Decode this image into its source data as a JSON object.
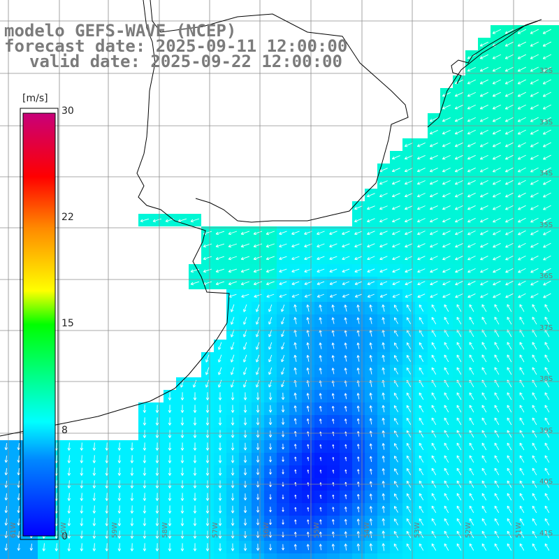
{
  "header": {
    "line1": "modelo GEFS-WAVE (NCEP)",
    "line2": "forecast date: 2025-09-11 12:00:00",
    "line3": "valid date: 2025-09-22 12:00:00"
  },
  "colorbar": {
    "unit": "[m/s]",
    "min": 0,
    "max": 30,
    "ticks": [
      "30",
      "22",
      "15",
      "8",
      "0"
    ],
    "tick_values": [
      30,
      22,
      15,
      8,
      0
    ],
    "colors": [
      "#0000ff",
      "#00aaff",
      "#00ffff",
      "#00ff00",
      "#ffff00",
      "#ff8800",
      "#ff0000",
      "#c8007a"
    ]
  },
  "map": {
    "grid_lat_labels": [
      "32S",
      "33S",
      "34S",
      "35S",
      "36S",
      "37S",
      "38S",
      "39S",
      "40S",
      "41S"
    ],
    "grid_lon_labels": [
      "61W",
      "60W",
      "59W",
      "58W",
      "57W",
      "56W",
      "55W",
      "54W",
      "53W",
      "52W",
      "51W"
    ],
    "field": "10 m wind speed with direction arrows",
    "land_color": "#ffffff",
    "arrow_color": "#ffffff",
    "gridline_color": "#8c8c8c"
  }
}
